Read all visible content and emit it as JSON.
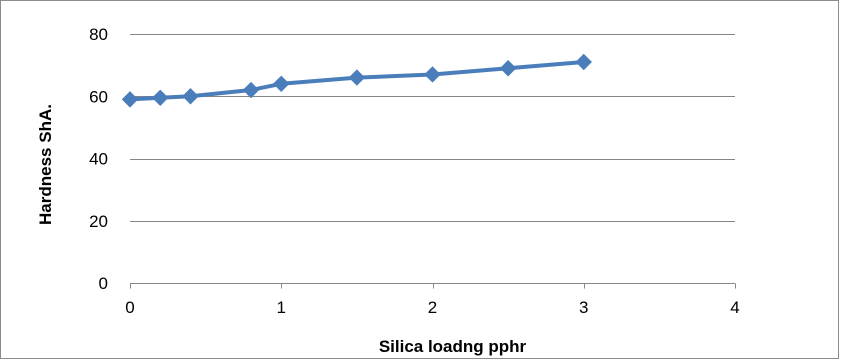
{
  "chart_data": {
    "type": "line",
    "title": "",
    "xlabel": "Silica loadng pphr",
    "ylabel": "Hardness ShA.",
    "xlim": [
      0,
      4
    ],
    "ylim": [
      0,
      80
    ],
    "x_ticks": [
      0,
      1,
      2,
      3,
      4
    ],
    "y_ticks": [
      0,
      20,
      40,
      60,
      80
    ],
    "x_tick_labels": [
      "0",
      "1",
      "2",
      "3",
      "4"
    ],
    "y_tick_labels": [
      "0",
      "20",
      "40",
      "60",
      "80"
    ],
    "grid": "horizontal",
    "legend": "none",
    "marker": "diamond",
    "series": [
      {
        "color": "#4a7ebb",
        "x": [
          0,
          0.2,
          0.4,
          0.8,
          1,
          1.5,
          2,
          2.5,
          3
        ],
        "y": [
          59,
          59.5,
          60,
          62,
          64,
          66,
          67,
          69,
          71
        ]
      }
    ]
  }
}
